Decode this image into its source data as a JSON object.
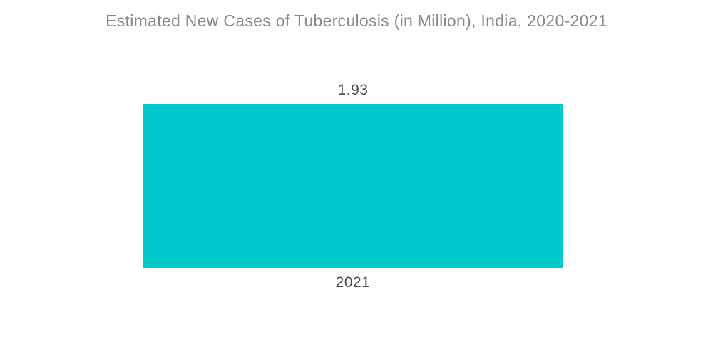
{
  "chart_data": {
    "type": "bar",
    "title": "Estimated New Cases of Tuberculosis (in Million), India, 2020-2021",
    "categories": [
      "2021"
    ],
    "values": [
      "1.93"
    ],
    "series": [
      {
        "name": "Estimated New Cases of Tuberculosis (in Million)",
        "values": [
          1.93
        ]
      }
    ],
    "xlabel": "",
    "ylabel": "",
    "legend": "none",
    "grid": "off",
    "axes_visible": false,
    "bar_color": "#00c9ce",
    "title_color": "#898989",
    "label_color": "#4e4e4e",
    "background_color": "#ffffff"
  }
}
